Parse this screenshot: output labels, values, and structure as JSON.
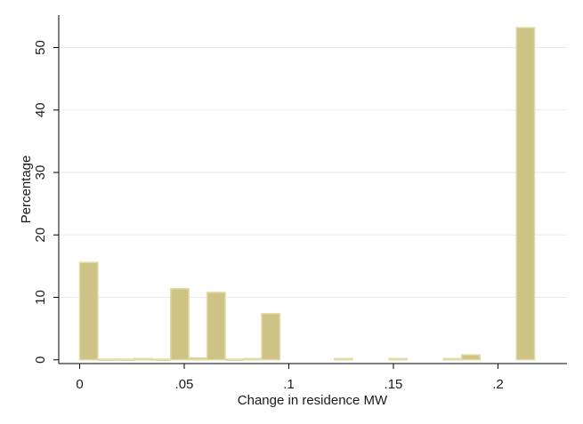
{
  "chart_data": {
    "type": "bar",
    "xlabel": "Change in residence MW",
    "ylabel": "Percentage",
    "xlim": [
      -0.01,
      0.233
    ],
    "ylim": [
      -0.6,
      55.2
    ],
    "x_ticks": [
      0,
      0.05,
      0.1,
      0.15,
      0.2
    ],
    "x_tick_labels": [
      "0",
      ".05",
      ".1",
      ".15",
      ".2"
    ],
    "y_ticks": [
      0,
      10,
      20,
      30,
      40,
      50
    ],
    "y_tick_labels": [
      "0",
      "10",
      "20",
      "30",
      "40",
      "50"
    ],
    "grid": true,
    "colors": {
      "bar_fill": "#cdc385",
      "bar_stroke": "#e2dba8",
      "grid": "#eaeaea",
      "axis": "#000000"
    },
    "bar_width": 0.0087,
    "bars": [
      {
        "x": 0.0,
        "value": 15.6
      },
      {
        "x": 0.0087,
        "value": 0.1
      },
      {
        "x": 0.0174,
        "value": 0.1
      },
      {
        "x": 0.0261,
        "value": 0.2
      },
      {
        "x": 0.0348,
        "value": 0.1
      },
      {
        "x": 0.0435,
        "value": 11.4
      },
      {
        "x": 0.0522,
        "value": 0.3
      },
      {
        "x": 0.0609,
        "value": 10.8
      },
      {
        "x": 0.0696,
        "value": 0.1
      },
      {
        "x": 0.0783,
        "value": 0.2
      },
      {
        "x": 0.087,
        "value": 7.4
      },
      {
        "x": 0.1218,
        "value": 0.2
      },
      {
        "x": 0.1479,
        "value": 0.2
      },
      {
        "x": 0.174,
        "value": 0.2
      },
      {
        "x": 0.1827,
        "value": 0.8
      },
      {
        "x": 0.2088,
        "value": 53.2
      }
    ]
  }
}
